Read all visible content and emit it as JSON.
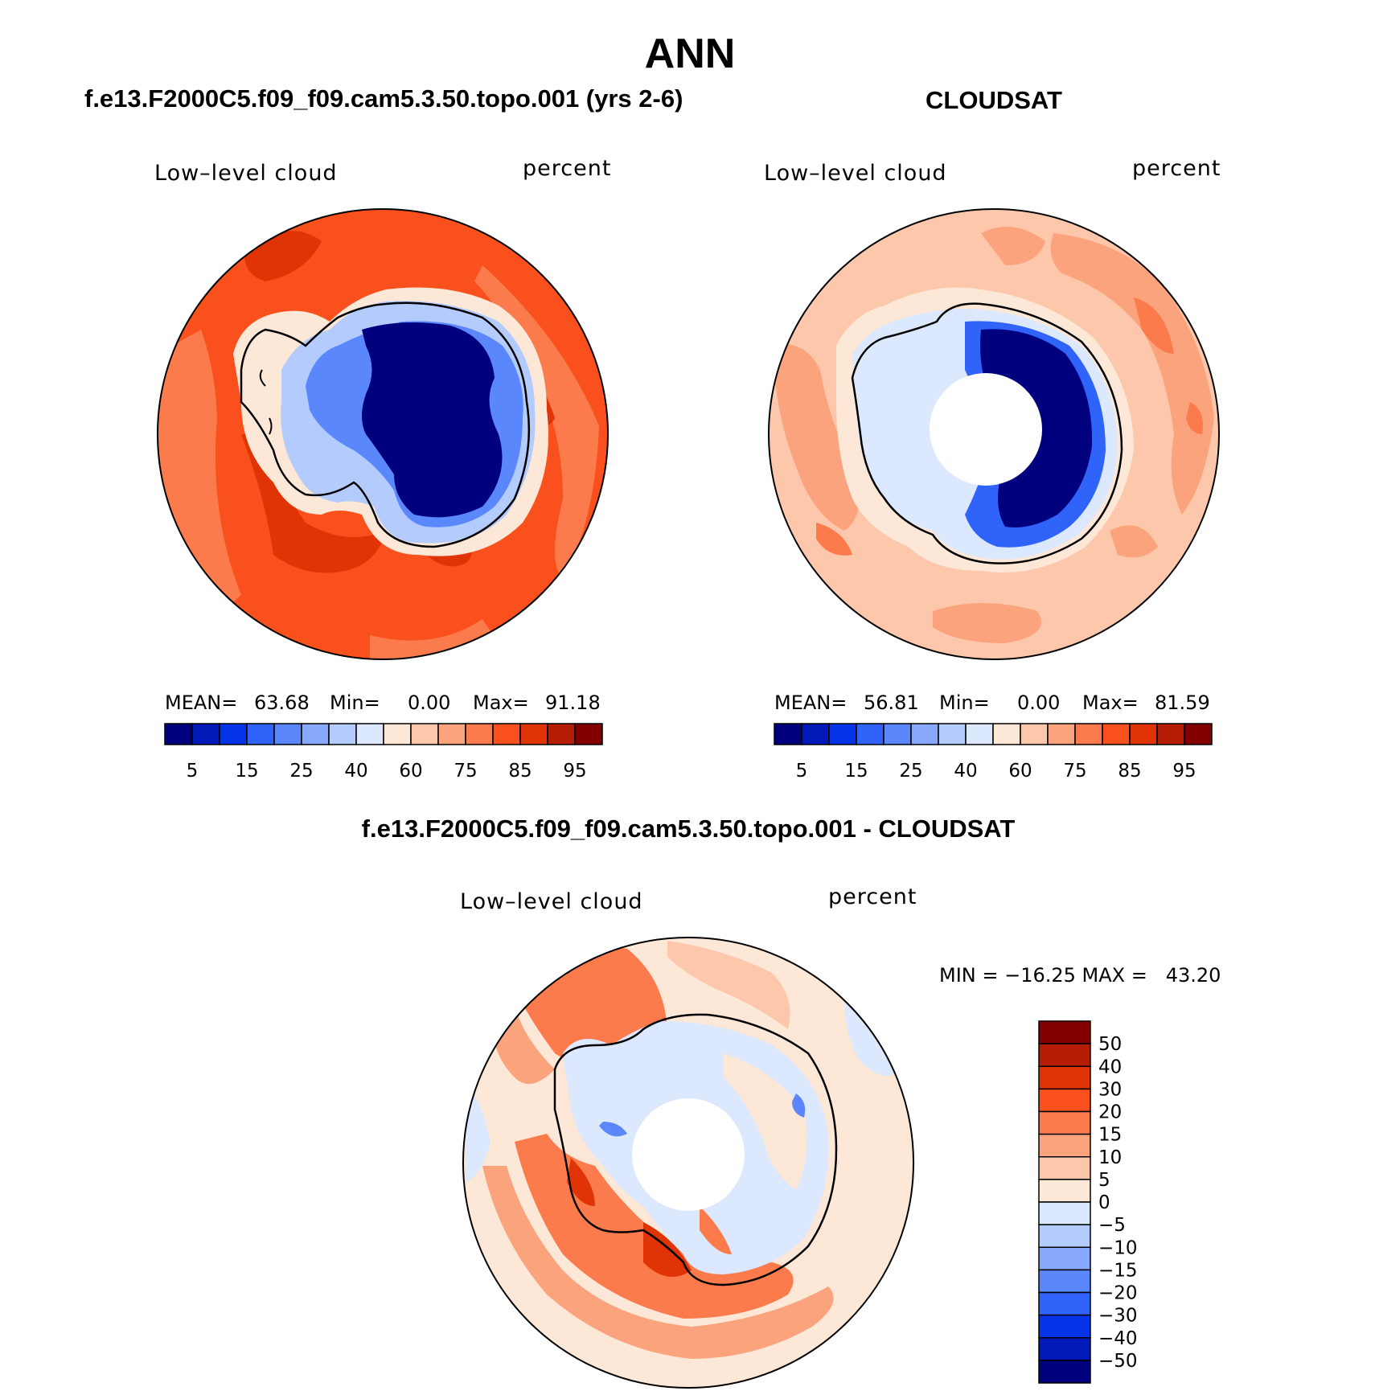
{
  "title": "ANN",
  "panels": [
    {
      "title": "f.e13.F2000C5.f09_f09.cam5.3.50.topo.001 (yrs 2-6)",
      "left_label": "Low–level cloud",
      "right_label": "percent",
      "stats": {
        "mean_label": "MEAN=",
        "mean": "63.68",
        "min_label": "Min=",
        "min": "0.00",
        "max_label": "Max=",
        "max": "91.18"
      }
    },
    {
      "title": "CLOUDSAT",
      "left_label": "Low–level cloud",
      "right_label": "percent",
      "stats": {
        "mean_label": "MEAN=",
        "mean": "56.81",
        "min_label": "Min=",
        "min": "0.00",
        "max_label": "Max=",
        "max": "81.59"
      }
    },
    {
      "title": "f.e13.F2000C5.f09_f09.cam5.3.50.topo.001 - CLOUDSAT",
      "left_label": "Low–level cloud",
      "right_label": "percent",
      "minmax": "MIN = −16.25 MAX =   43.20"
    }
  ],
  "colorbar_abs": {
    "tick_labels": [
      "5",
      "15",
      "25",
      "40",
      "60",
      "75",
      "85",
      "95"
    ],
    "colors": [
      "#00007f",
      "#0019b8",
      "#0533e8",
      "#2f63fa",
      "#5a87fb",
      "#88a9fb",
      "#b4cbfd",
      "#dbe8fe",
      "#fde7d7",
      "#fcc7aa",
      "#fba37d",
      "#fb7b4c",
      "#f9501d",
      "#e03407",
      "#b51c04",
      "#830000"
    ]
  },
  "colorbar_diff": {
    "tick_labels": [
      "50",
      "40",
      "30",
      "20",
      "15",
      "10",
      "5",
      "0",
      "−5",
      "−10",
      "−15",
      "−20",
      "−30",
      "−40",
      "−50"
    ],
    "colors": [
      "#830000",
      "#b51c04",
      "#e03407",
      "#f9501d",
      "#fb7b4c",
      "#fba37d",
      "#fcc7aa",
      "#fde7d7",
      "#dbe8fe",
      "#b4cbfd",
      "#88a9fb",
      "#5a87fb",
      "#2f63fa",
      "#0533e8",
      "#0019b8",
      "#00007f"
    ]
  }
}
